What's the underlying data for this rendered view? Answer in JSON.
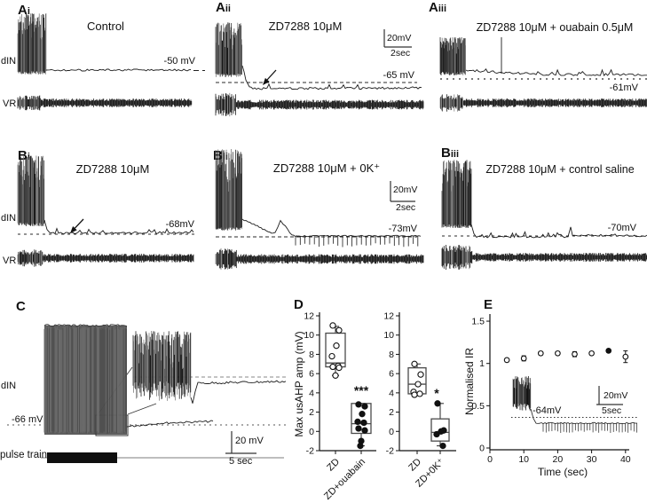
{
  "figure": {
    "background": "#ffffff",
    "ink": "#111111",
    "block_gray": "#5e5e5e"
  },
  "panels": {
    "ai": {
      "label_main": "A",
      "label_sub": "i",
      "title": "Control",
      "trace_label": "dIN",
      "vr_label": "VR",
      "vm_label": "-50 mV"
    },
    "aii": {
      "label_main": "A",
      "label_sub": "ii",
      "title": "ZD7288 10μM",
      "vm_label": "-65 mV",
      "scale_v": "20mV",
      "scale_h": "2sec"
    },
    "aiii": {
      "label_main": "A",
      "label_sub": "iii",
      "title": "ZD7288 10μM + ouabain 0.5μM",
      "vm_label": "-61mV"
    },
    "bi": {
      "label_main": "B",
      "label_sub": "i",
      "title": "ZD7288 10μM",
      "trace_label": "dIN",
      "vr_label": "VR",
      "vm_label": "-68mV"
    },
    "bii": {
      "label_main": "B",
      "label_sub": "ii",
      "title": "ZD7288 10μM + 0K⁺",
      "vm_label": "-73mV",
      "scale_v": "20mV",
      "scale_h": "2sec"
    },
    "biii": {
      "label_main": "B",
      "label_sub": "iii",
      "title": "ZD7288 10μM + control saline",
      "vm_label": "-70mV"
    },
    "c": {
      "label_main": "C",
      "trace_label": "dIN",
      "vm_label": "-66 mV",
      "pulse_label": "pulse train",
      "scale_v": "20 mV",
      "scale_h": "5 sec"
    },
    "d": {
      "label_main": "D"
    },
    "e": {
      "label_main": "E",
      "inset_vm_label": "-64mV",
      "scale_v": "20mV",
      "scale_h": "5sec"
    }
  },
  "chart_data": [
    {
      "type": "box",
      "title": "",
      "ylabel": "Max usAHP amp (mV)",
      "ylim": [
        -2,
        12
      ],
      "yticks": [
        -2,
        0,
        2,
        4,
        6,
        8,
        10,
        12
      ],
      "categories": [
        "ZD",
        "ZD+ouabain"
      ],
      "groups": [
        {
          "name": "ZD",
          "point_style": "open",
          "box": {
            "whisker_low": 5.8,
            "q1": 6.7,
            "median": 7.1,
            "q3": 10.2,
            "whisker_high": 10.9
          },
          "points": [
            11.0,
            10.5,
            8.9,
            7.8,
            6.8,
            6.7,
            6.6,
            5.8
          ]
        },
        {
          "name": "ZD+ouabain",
          "point_style": "filled",
          "significance": "***",
          "box": {
            "whisker_low": -1.5,
            "q1": -0.2,
            "median": 0.8,
            "q3": 2.9,
            "whisker_high": 2.9
          },
          "points": [
            2.8,
            2.6,
            1.8,
            1.0,
            0.9,
            0.3,
            0.1,
            -1.0,
            -1.5
          ]
        }
      ]
    },
    {
      "type": "box",
      "title": "",
      "ylabel": "Max usAHP amp (mV)",
      "ylim": [
        -2,
        12
      ],
      "yticks": [
        -2,
        0,
        2,
        4,
        6,
        8,
        10,
        12
      ],
      "categories": [
        "ZD",
        "ZD+0K⁺"
      ],
      "groups": [
        {
          "name": "ZD",
          "point_style": "open",
          "box": {
            "whisker_low": 3.8,
            "q1": 3.9,
            "median": 4.9,
            "q3": 6.6,
            "whisker_high": 7.0
          },
          "points": [
            7.0,
            5.9,
            4.9,
            4.1,
            3.9,
            3.8
          ]
        },
        {
          "name": "ZD+0K⁺",
          "point_style": "filled",
          "significance": "*",
          "box": {
            "whisker_low": -1.5,
            "q1": -1.0,
            "median": -0.1,
            "q3": 1.3,
            "whisker_high": 2.9
          },
          "points": [
            2.9,
            0.1,
            0.0,
            -0.3,
            -1.5
          ]
        }
      ]
    },
    {
      "type": "scatter",
      "xlabel": "Time (sec)",
      "ylabel": "Normalised IR",
      "xlim": [
        0,
        42
      ],
      "ylim": [
        0,
        1.5
      ],
      "xticks": [
        0,
        10,
        20,
        30,
        40
      ],
      "yticks": [
        0,
        0.5,
        1,
        1.5
      ],
      "x": [
        5,
        10,
        15,
        20,
        25,
        30,
        35,
        40
      ],
      "y": [
        1.04,
        1.06,
        1.12,
        1.12,
        1.11,
        1.12,
        1.15,
        1.08
      ],
      "yerr": [
        0.02,
        0.03,
        0.02,
        0.02,
        0.03,
        0.02,
        0.02,
        0.07
      ],
      "point_filled": [
        0,
        0,
        0,
        0,
        0,
        0,
        1,
        0
      ]
    }
  ]
}
